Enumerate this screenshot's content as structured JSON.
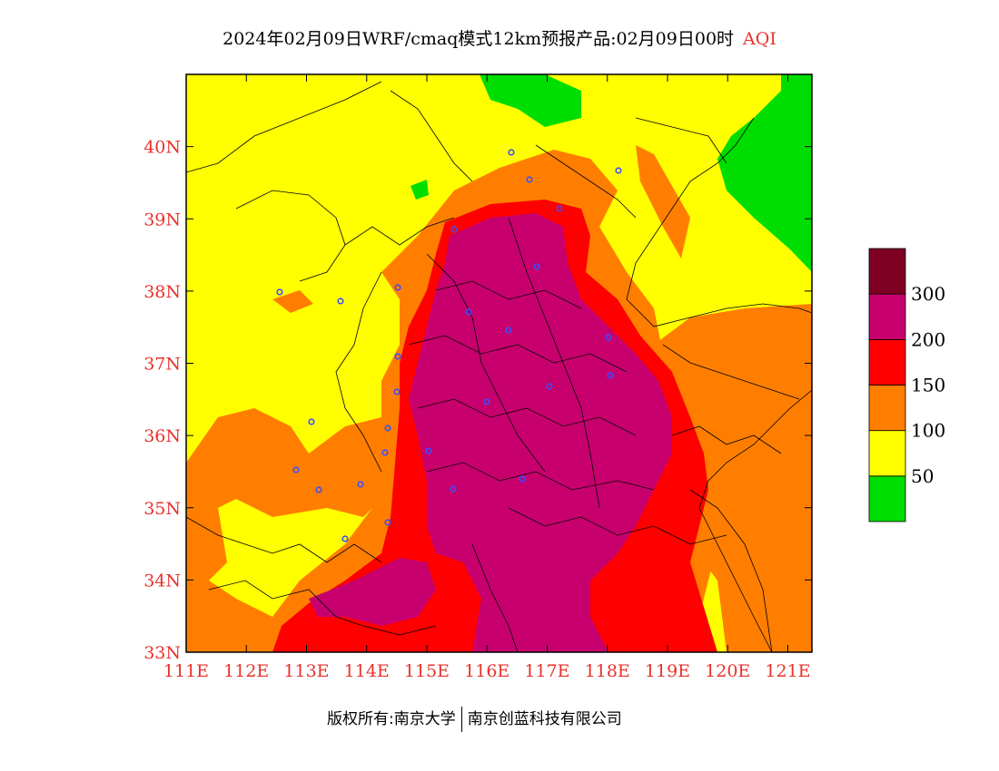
{
  "header": {
    "title": "2024年02月09日WRF/cmaq模式12km预报产品:02月09日00时",
    "variable": "AQI"
  },
  "map": {
    "lon_range": [
      111,
      121.4
    ],
    "lat_range": [
      33,
      41
    ],
    "lon_ticks": [
      "111E",
      "112E",
      "113E",
      "114E",
      "115E",
      "116E",
      "117E",
      "118E",
      "119E",
      "120E",
      "121E"
    ],
    "lat_ticks": [
      "33N",
      "34N",
      "35N",
      "36N",
      "37N",
      "38N",
      "39N",
      "40N"
    ],
    "tick_color": "#e8322c"
  },
  "legend": {
    "labels": [
      "50",
      "100",
      "150",
      "200",
      "300"
    ],
    "colors": [
      "#00dd00",
      "#ffff00",
      "#ff7e00",
      "#ff0000",
      "#c8006e",
      "#7e0023"
    ]
  },
  "footer": {
    "left": "版权所有:南京大学",
    "right": "南京创蓝科技有限公司"
  }
}
